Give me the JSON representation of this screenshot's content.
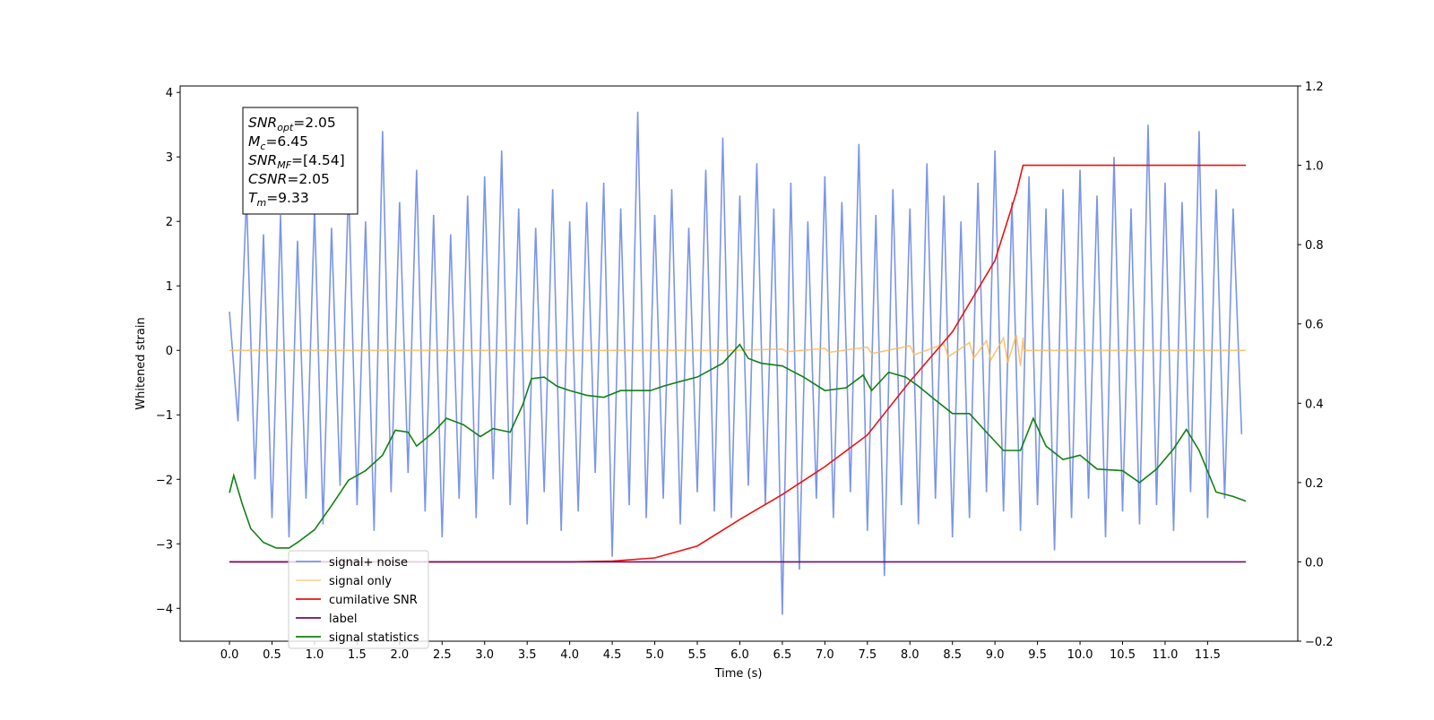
{
  "chart_data": {
    "type": "line",
    "xlabel": "Time (s)",
    "ylabel": "Whitened strain",
    "xlim": [
      -0.58,
      12.56
    ],
    "ylim": [
      -4.51,
      4.1
    ],
    "y2lim": [
      -0.2,
      1.2
    ],
    "xticks": [
      {
        "value": 0,
        "label": "0.0"
      },
      0.5,
      {
        "value": 1,
        "label": "1.0"
      },
      1.5,
      {
        "value": 2,
        "label": "2.0"
      },
      2.5,
      {
        "value": 3,
        "label": "3.0"
      },
      3.5,
      {
        "value": 4,
        "label": "4.0"
      },
      4.5,
      {
        "value": 5,
        "label": "5.0"
      },
      5.5,
      {
        "value": 6,
        "label": "6.0"
      },
      6.5,
      {
        "value": 7,
        "label": "7.0"
      },
      7.5,
      {
        "value": 8,
        "label": "8.0"
      },
      8.5,
      {
        "value": 9,
        "label": "9.0"
      },
      9.5,
      {
        "value": 10,
        "label": "10.0"
      },
      10.5,
      {
        "value": 11,
        "label": "11.0"
      },
      11.5
    ],
    "yticks": [
      {
        "value": -4,
        "label": "−4"
      },
      {
        "value": -3,
        "label": "−3"
      },
      {
        "value": -2,
        "label": "−2"
      },
      {
        "value": -1,
        "label": "−1"
      },
      0,
      1,
      2,
      3,
      4
    ],
    "y2ticks": [
      {
        "value": -0.2,
        "label": "−0.2"
      },
      {
        "value": 0,
        "label": "0.0"
      },
      0.2,
      0.4,
      0.6,
      0.8,
      {
        "value": 1,
        "label": "1.0"
      },
      1.2
    ],
    "legend_loc": "lower left",
    "annotations": [
      {
        "base": "SNR",
        "sub": "opt",
        "text": "=2.05"
      },
      {
        "base": "M",
        "sub": "c",
        "text": "=6.45"
      },
      {
        "base": "SNR",
        "sub": "MF",
        "text": "=[4.54]"
      },
      {
        "base": "CSNR",
        "text": "=2.05"
      },
      {
        "base": "T",
        "sub": "m",
        "text": "=9.33"
      }
    ],
    "series": [
      {
        "name": "signal+ noise",
        "color": "#7b95e8",
        "x": [
          0,
          0.1,
          0.2,
          0.3,
          0.4,
          0.5,
          0.6,
          0.7,
          0.8,
          0.9,
          1,
          1.1,
          1.2,
          1.3,
          1.4,
          1.5,
          1.6,
          1.7,
          1.8,
          1.9,
          2,
          2.1,
          2.2,
          2.3,
          2.4,
          2.5,
          2.6,
          2.7,
          2.8,
          2.9,
          3,
          3.1,
          3.2,
          3.3,
          3.4,
          3.5,
          3.6,
          3.7,
          3.8,
          3.9,
          4,
          4.1,
          4.2,
          4.3,
          4.4,
          4.5,
          4.6,
          4.7,
          4.8,
          4.9,
          5,
          5.1,
          5.2,
          5.3,
          5.4,
          5.5,
          5.6,
          5.7,
          5.8,
          5.9,
          6,
          6.1,
          6.2,
          6.3,
          6.4,
          6.5,
          6.6,
          6.7,
          6.8,
          6.9,
          7,
          7.1,
          7.2,
          7.3,
          7.4,
          7.5,
          7.6,
          7.7,
          7.8,
          7.9,
          8,
          8.1,
          8.2,
          8.3,
          8.4,
          8.5,
          8.6,
          8.7,
          8.8,
          8.9,
          9,
          9.1,
          9.2,
          9.3,
          9.4,
          9.5,
          9.6,
          9.7,
          9.8,
          9.9,
          10,
          10.1,
          10.2,
          10.3,
          10.4,
          10.5,
          10.6,
          10.7,
          10.8,
          10.9,
          11,
          11.1,
          11.2,
          11.3,
          11.4,
          11.5,
          11.6,
          11.7,
          11.8,
          11.9
        ],
        "values": [
          0.6,
          -1.1,
          2.4,
          -2.0,
          1.8,
          -2.6,
          2.1,
          -2.9,
          1.7,
          -2.3,
          2.2,
          -2.7,
          1.9,
          -2.1,
          2.6,
          -2.4,
          2.0,
          -2.8,
          3.4,
          -2.2,
          2.3,
          -1.9,
          2.8,
          -2.5,
          2.1,
          -2.9,
          1.8,
          -2.3,
          2.4,
          -2.6,
          2.7,
          -2.0,
          3.1,
          -2.4,
          2.2,
          -2.7,
          1.9,
          -2.2,
          2.5,
          -2.8,
          2.0,
          -2.5,
          2.3,
          -1.9,
          2.6,
          -3.2,
          2.2,
          -2.4,
          3.7,
          -2.6,
          2.1,
          -2.3,
          2.5,
          -2.7,
          1.9,
          -2.2,
          2.8,
          -2.5,
          3.3,
          -2.6,
          2.4,
          -2.1,
          2.9,
          -2.4,
          2.2,
          -4.1,
          2.6,
          -3.4,
          2.0,
          -2.3,
          2.7,
          -2.6,
          2.3,
          -2.2,
          3.2,
          -2.8,
          2.1,
          -3.5,
          2.5,
          -2.4,
          2.2,
          -2.7,
          2.9,
          -2.3,
          2.4,
          -2.9,
          2.0,
          -2.6,
          2.6,
          -2.2,
          3.1,
          -2.5,
          2.3,
          -2.8,
          2.7,
          -2.4,
          2.2,
          -3.1,
          2.5,
          -2.6,
          2.8,
          -2.3,
          2.4,
          -2.9,
          3.0,
          -2.5,
          2.2,
          -2.7,
          3.5,
          -2.4,
          2.6,
          -2.8,
          2.3,
          -2.2,
          3.4,
          -2.6,
          2.5,
          -2.3,
          2.2,
          -1.3
        ]
      },
      {
        "name": "signal only",
        "color": "#ffb84d",
        "x": [
          0,
          5.9,
          6.5,
          6.55,
          7.0,
          7.05,
          7.5,
          7.55,
          8.0,
          8.05,
          8.4,
          8.45,
          8.7,
          8.75,
          8.9,
          8.95,
          9.1,
          9.15,
          9.25,
          9.3,
          9.33,
          9.34,
          11.95
        ],
        "values": [
          0,
          0,
          0.02,
          -0.02,
          0.03,
          -0.03,
          0.05,
          -0.05,
          0.07,
          -0.07,
          0.1,
          -0.1,
          0.12,
          -0.12,
          0.15,
          -0.15,
          0.19,
          -0.19,
          0.24,
          -0.24,
          0.2,
          0,
          0
        ]
      },
      {
        "name": "cumilative SNR",
        "color": "#ee1111",
        "axis": "y2",
        "x": [
          0,
          4.0,
          4.5,
          5.0,
          5.5,
          6.0,
          6.5,
          7.0,
          7.5,
          8.0,
          8.5,
          9.0,
          9.25,
          9.33,
          11.95
        ],
        "values": [
          0,
          0,
          0.002,
          0.01,
          0.04,
          0.107,
          0.17,
          0.24,
          0.32,
          0.455,
          0.58,
          0.76,
          0.93,
          1.0,
          1.0
        ]
      },
      {
        "name": "label",
        "color": "#6e0f6e",
        "axis": "y2",
        "x": [
          0,
          11.95
        ],
        "values": [
          0,
          0
        ]
      },
      {
        "name": "signal statistics",
        "color": "#128012",
        "axis": "y2",
        "x": [
          0,
          0.05,
          0.15,
          0.25,
          0.4,
          0.55,
          0.7,
          0.8,
          1.0,
          1.2,
          1.4,
          1.6,
          1.8,
          1.95,
          2.1,
          2.2,
          2.4,
          2.55,
          2.75,
          2.95,
          3.1,
          3.3,
          3.45,
          3.55,
          3.7,
          3.85,
          4.0,
          4.2,
          4.4,
          4.6,
          4.75,
          4.95,
          5.1,
          5.3,
          5.5,
          5.8,
          6.0,
          6.1,
          6.25,
          6.5,
          6.75,
          7.0,
          7.25,
          7.45,
          7.55,
          7.75,
          7.95,
          8.1,
          8.3,
          8.5,
          8.7,
          8.9,
          9.1,
          9.3,
          9.45,
          9.6,
          9.8,
          10.0,
          10.2,
          10.5,
          10.7,
          10.9,
          11.1,
          11.25,
          11.4,
          11.6,
          11.8,
          11.95
        ],
        "values": [
          0.174,
          0.218,
          0.146,
          0.084,
          0.049,
          0.035,
          0.035,
          0.049,
          0.081,
          0.142,
          0.206,
          0.23,
          0.269,
          0.332,
          0.327,
          0.292,
          0.327,
          0.362,
          0.346,
          0.316,
          0.336,
          0.327,
          0.397,
          0.462,
          0.466,
          0.443,
          0.432,
          0.42,
          0.415,
          0.432,
          0.432,
          0.432,
          0.443,
          0.455,
          0.466,
          0.501,
          0.548,
          0.513,
          0.501,
          0.494,
          0.466,
          0.432,
          0.439,
          0.471,
          0.432,
          0.478,
          0.466,
          0.443,
          0.408,
          0.374,
          0.374,
          0.327,
          0.281,
          0.281,
          0.362,
          0.292,
          0.258,
          0.269,
          0.234,
          0.23,
          0.2,
          0.234,
          0.285,
          0.334,
          0.281,
          0.176,
          0.165,
          0.153
        ]
      }
    ]
  }
}
